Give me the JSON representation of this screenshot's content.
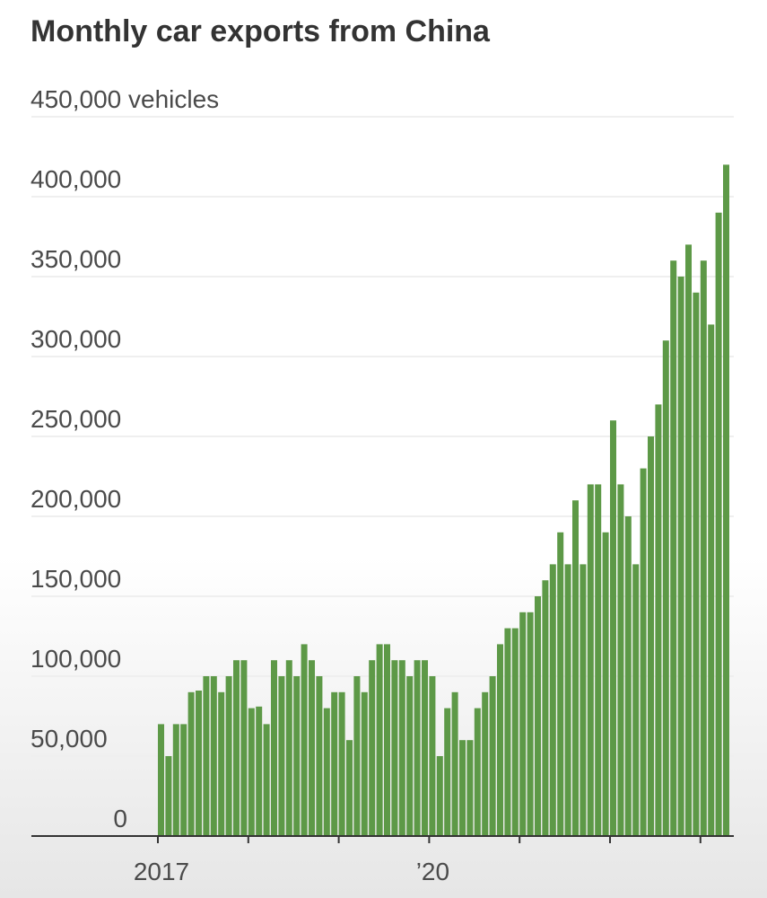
{
  "chart_data": {
    "type": "bar",
    "title": "Monthly car exports from China",
    "y_unit_label": "450,000 vehicles",
    "ylim": [
      0,
      450000
    ],
    "yticks": [
      0,
      50000,
      100000,
      150000,
      200000,
      250000,
      300000,
      350000,
      400000
    ],
    "ytick_labels": [
      "0",
      "50,000",
      "100,000",
      "150,000",
      "200,000",
      "250,000",
      "300,000",
      "350,000",
      "400,000"
    ],
    "xtick_labels": [
      {
        "label": "2017",
        "month_index": 0
      },
      {
        "label": "’20",
        "month_index": 36
      }
    ],
    "grid": true,
    "bar_color": "#5d9947",
    "start_month": "2017-01",
    "values": [
      70000,
      50000,
      70000,
      70000,
      90000,
      91000,
      100000,
      100000,
      90000,
      100000,
      110000,
      110000,
      80000,
      81000,
      70000,
      110000,
      100000,
      110000,
      100000,
      120000,
      110000,
      100000,
      80000,
      90000,
      90000,
      60000,
      100000,
      90000,
      110000,
      120000,
      120000,
      110000,
      110000,
      100000,
      110000,
      110000,
      100000,
      50000,
      80000,
      90000,
      60000,
      60000,
      80000,
      90000,
      100000,
      120000,
      130000,
      130000,
      140000,
      140000,
      150000,
      160000,
      170000,
      190000,
      170000,
      210000,
      170000,
      220000,
      220000,
      190000,
      260000,
      220000,
      200000,
      170000,
      230000,
      250000,
      270000,
      310000,
      360000,
      350000,
      370000,
      340000,
      360000,
      320000,
      390000,
      420000
    ]
  }
}
